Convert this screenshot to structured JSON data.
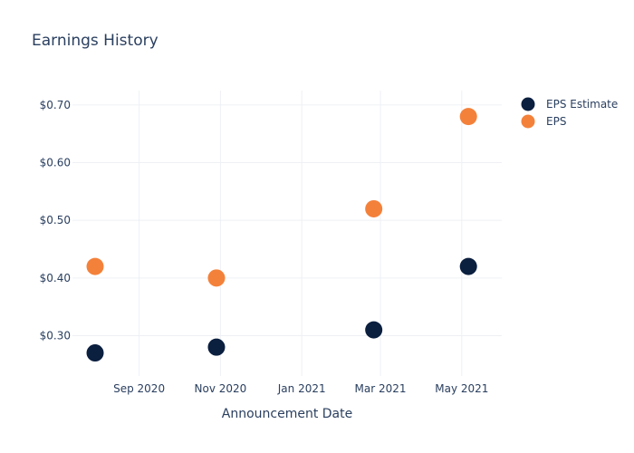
{
  "chart_data": {
    "type": "scatter",
    "title": "Earnings History",
    "xlabel": "Announcement Date",
    "ylabel": "",
    "x_tick_labels": [
      "Sep 2020",
      "Nov 2020",
      "Jan 2021",
      "Mar 2021",
      "May 2021"
    ],
    "x_ticks": [
      "2020-09-01",
      "2020-11-01",
      "2021-01-01",
      "2021-03-01",
      "2021-05-01"
    ],
    "xlim": [
      "2020-07-13",
      "2021-05-31"
    ],
    "y_tick_labels": [
      "$0.30",
      "$0.40",
      "$0.50",
      "$0.60",
      "$0.70"
    ],
    "y_ticks": [
      0.3,
      0.4,
      0.5,
      0.6,
      0.7
    ],
    "ylim": [
      0.23,
      0.725
    ],
    "grid": true,
    "legend_position": "top-right",
    "x": [
      "2020-07-30",
      "2020-10-29",
      "2021-02-24",
      "2021-05-06"
    ],
    "series": [
      {
        "name": "EPS Estimate",
        "color": "#0b1f3f",
        "values": [
          0.27,
          0.28,
          0.31,
          0.42
        ]
      },
      {
        "name": "EPS",
        "color": "#f4813a",
        "values": [
          0.42,
          0.4,
          0.52,
          0.68
        ]
      }
    ]
  }
}
